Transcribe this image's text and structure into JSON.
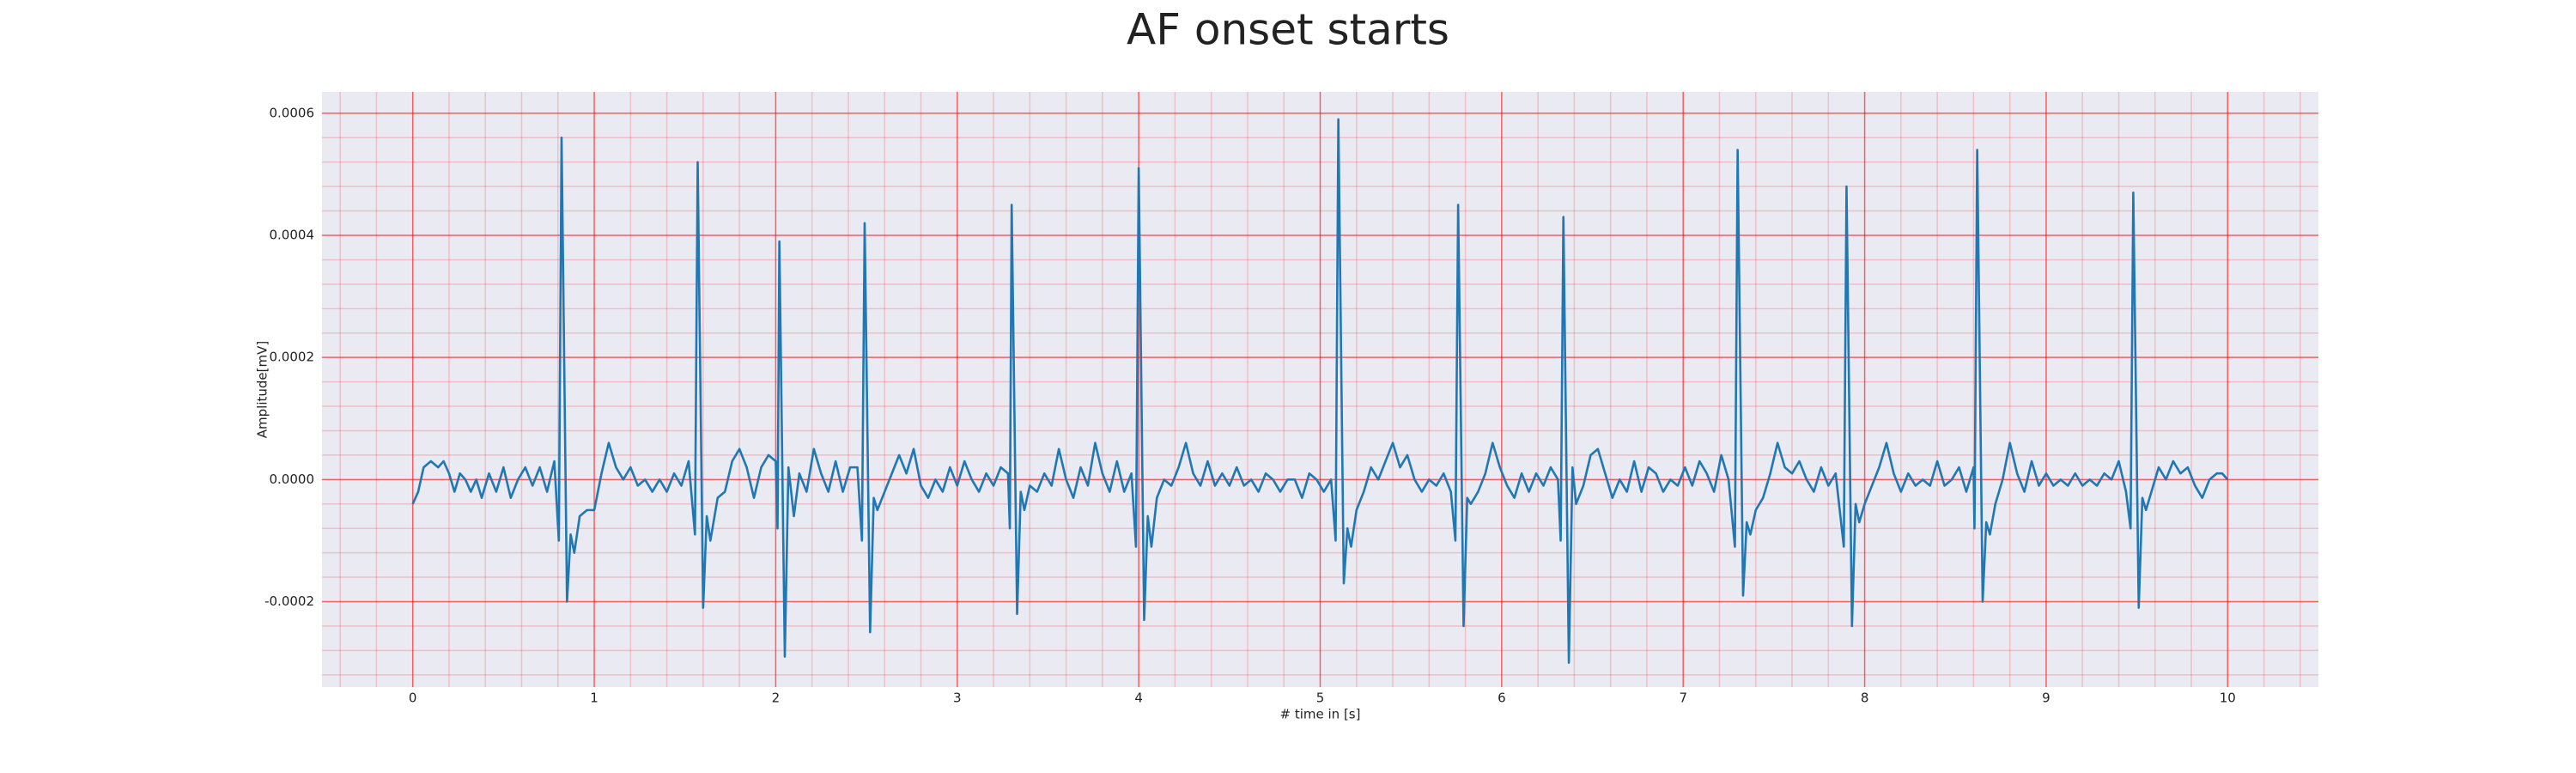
{
  "chart_data": {
    "type": "line",
    "title": "AF onset starts",
    "xlabel": "# time in [s]",
    "ylabel": "Amplitude[mV]",
    "xlim": [
      -0.5,
      10.5
    ],
    "ylim": [
      -0.00034,
      0.000635
    ],
    "xticks": [
      0,
      1,
      2,
      3,
      4,
      5,
      6,
      7,
      8,
      9,
      10
    ],
    "yticks": [
      -0.0002,
      {
        "value": 0,
        "label": "0.0000"
      },
      0.0002,
      0.0004,
      0.0006
    ],
    "grid": true,
    "grid_color": "#ff0000",
    "minor_grid": true,
    "series": [
      {
        "color": "#1f77b4",
        "x": [
          0,
          0.03,
          0.06,
          0.1,
          0.14,
          0.17,
          0.2,
          0.23,
          0.26,
          0.29,
          0.32,
          0.35,
          0.38,
          0.42,
          0.46,
          0.5,
          0.54,
          0.58,
          0.62,
          0.66,
          0.7,
          0.74,
          0.78,
          0.805,
          0.82,
          0.85,
          0.87,
          0.89,
          0.92,
          0.96,
          1.0,
          1.04,
          1.08,
          1.12,
          1.16,
          1.2,
          1.24,
          1.28,
          1.32,
          1.36,
          1.4,
          1.44,
          1.48,
          1.52,
          1.555,
          1.57,
          1.6,
          1.62,
          1.64,
          1.68,
          1.72,
          1.76,
          1.8,
          1.84,
          1.88,
          1.92,
          1.96,
          2.0,
          2.01,
          2.02,
          2.05,
          2.07,
          2.1,
          2.13,
          2.17,
          2.21,
          2.25,
          2.29,
          2.33,
          2.37,
          2.41,
          2.45,
          2.475,
          2.49,
          2.52,
          2.54,
          2.56,
          2.6,
          2.64,
          2.68,
          2.72,
          2.76,
          2.8,
          2.84,
          2.88,
          2.92,
          2.96,
          3.0,
          3.04,
          3.08,
          3.12,
          3.16,
          3.2,
          3.24,
          3.28,
          3.29,
          3.3,
          3.33,
          3.35,
          3.37,
          3.4,
          3.44,
          3.48,
          3.52,
          3.56,
          3.6,
          3.64,
          3.68,
          3.72,
          3.76,
          3.8,
          3.84,
          3.88,
          3.92,
          3.96,
          3.985,
          4.0,
          4.03,
          4.05,
          4.07,
          4.1,
          4.14,
          4.18,
          4.22,
          4.26,
          4.3,
          4.34,
          4.38,
          4.42,
          4.46,
          4.5,
          4.54,
          4.58,
          4.62,
          4.66,
          4.7,
          4.74,
          4.78,
          4.82,
          4.86,
          4.9,
          4.94,
          4.98,
          5.02,
          5.06,
          5.085,
          5.1,
          5.13,
          5.15,
          5.17,
          5.2,
          5.24,
          5.28,
          5.32,
          5.36,
          5.4,
          5.44,
          5.48,
          5.52,
          5.56,
          5.6,
          5.64,
          5.68,
          5.72,
          5.745,
          5.76,
          5.79,
          5.81,
          5.83,
          5.87,
          5.91,
          5.95,
          5.99,
          6.03,
          6.07,
          6.11,
          6.15,
          6.19,
          6.23,
          6.27,
          6.31,
          6.325,
          6.34,
          6.37,
          6.39,
          6.41,
          6.45,
          6.49,
          6.53,
          6.57,
          6.61,
          6.65,
          6.69,
          6.73,
          6.77,
          6.81,
          6.85,
          6.89,
          6.93,
          6.97,
          7.01,
          7.05,
          7.09,
          7.13,
          7.17,
          7.21,
          7.25,
          7.285,
          7.3,
          7.33,
          7.35,
          7.37,
          7.4,
          7.44,
          7.48,
          7.52,
          7.56,
          7.6,
          7.64,
          7.68,
          7.72,
          7.76,
          7.8,
          7.84,
          7.885,
          7.9,
          7.93,
          7.95,
          7.97,
          8.0,
          8.04,
          8.08,
          8.12,
          8.16,
          8.2,
          8.24,
          8.28,
          8.32,
          8.36,
          8.4,
          8.44,
          8.48,
          8.52,
          8.56,
          8.6,
          8.605,
          8.62,
          8.65,
          8.67,
          8.69,
          8.72,
          8.76,
          8.8,
          8.84,
          8.88,
          8.92,
          8.96,
          9.0,
          9.04,
          9.08,
          9.12,
          9.16,
          9.2,
          9.24,
          9.28,
          9.32,
          9.36,
          9.4,
          9.44,
          9.465,
          9.48,
          9.51,
          9.53,
          9.55,
          9.58,
          9.62,
          9.66,
          9.7,
          9.74,
          9.78,
          9.82,
          9.86,
          9.9,
          9.94,
          9.97,
          10.0
        ],
        "values": [
          -4e-05,
          -2e-05,
          2e-05,
          3e-05,
          2e-05,
          3e-05,
          1e-05,
          -2e-05,
          1e-05,
          0,
          -2e-05,
          0,
          -3e-05,
          1e-05,
          -2e-05,
          2e-05,
          -3e-05,
          0,
          2e-05,
          -1e-05,
          2e-05,
          -2e-05,
          3e-05,
          -0.0001,
          0.00056,
          -0.0002,
          -9e-05,
          -0.00012,
          -6e-05,
          -5e-05,
          -5e-05,
          1e-05,
          6e-05,
          2e-05,
          0,
          2e-05,
          -1e-05,
          0,
          -2e-05,
          0,
          -2e-05,
          1e-05,
          -1e-05,
          3e-05,
          -9e-05,
          0.00052,
          -0.00021,
          -6e-05,
          -0.0001,
          -3e-05,
          -2e-05,
          3e-05,
          5e-05,
          2e-05,
          -3e-05,
          2e-05,
          4e-05,
          3e-05,
          -8e-05,
          0.00039,
          -0.00029,
          2e-05,
          -6e-05,
          1e-05,
          -2e-05,
          5e-05,
          1e-05,
          -2e-05,
          3e-05,
          -2e-05,
          2e-05,
          2e-05,
          -0.0001,
          0.00042,
          -0.00025,
          -3e-05,
          -5e-05,
          -2e-05,
          1e-05,
          4e-05,
          1e-05,
          5e-05,
          -1e-05,
          -3e-05,
          0,
          -2e-05,
          2e-05,
          -1e-05,
          3e-05,
          0,
          -2e-05,
          1e-05,
          -1e-05,
          2e-05,
          1e-05,
          -8e-05,
          0.00045,
          -0.00022,
          -2e-05,
          -5e-05,
          -1e-05,
          -2e-05,
          1e-05,
          -1e-05,
          5e-05,
          0,
          -3e-05,
          2e-05,
          -1e-05,
          6e-05,
          1e-05,
          -2e-05,
          3e-05,
          -2e-05,
          1e-05,
          -0.00011,
          0.00051,
          -0.00023,
          -6e-05,
          -0.00011,
          -3e-05,
          0,
          -1e-05,
          2e-05,
          6e-05,
          1e-05,
          -1e-05,
          3e-05,
          -1e-05,
          1e-05,
          -1e-05,
          2e-05,
          -1e-05,
          0,
          -2e-05,
          1e-05,
          0,
          -2e-05,
          0,
          0,
          -3e-05,
          1e-05,
          0,
          -2e-05,
          0,
          -0.0001,
          0.00059,
          -0.00017,
          -8e-05,
          -0.00011,
          -5e-05,
          -2e-05,
          2e-05,
          0,
          3e-05,
          6e-05,
          2e-05,
          4e-05,
          0,
          -2e-05,
          0,
          -1e-05,
          1e-05,
          -2e-05,
          -0.0001,
          0.00045,
          -0.00024,
          -3e-05,
          -4e-05,
          -2e-05,
          1e-05,
          6e-05,
          2e-05,
          -1e-05,
          -3e-05,
          1e-05,
          -2e-05,
          1e-05,
          -1e-05,
          2e-05,
          0,
          -0.0001,
          0.00043,
          -0.0003,
          2e-05,
          -4e-05,
          -1e-05,
          4e-05,
          5e-05,
          1e-05,
          -3e-05,
          0,
          -2e-05,
          3e-05,
          -2e-05,
          2e-05,
          1e-05,
          -2e-05,
          0,
          -1e-05,
          2e-05,
          -1e-05,
          3e-05,
          1e-05,
          -2e-05,
          4e-05,
          0,
          -0.00011,
          0.00054,
          -0.00019,
          -7e-05,
          -9e-05,
          -5e-05,
          -3e-05,
          1e-05,
          6e-05,
          2e-05,
          1e-05,
          3e-05,
          0,
          -2e-05,
          2e-05,
          -1e-05,
          1e-05,
          -0.00011,
          0.00048,
          -0.00024,
          -4e-05,
          -7e-05,
          -4e-05,
          -1e-05,
          2e-05,
          6e-05,
          1e-05,
          -2e-05,
          1e-05,
          -1e-05,
          0,
          -1e-05,
          3e-05,
          -1e-05,
          0,
          2e-05,
          -2e-05,
          2e-05,
          -8e-05,
          0.00054,
          -0.0002,
          -7e-05,
          -9e-05,
          -4e-05,
          0,
          6e-05,
          1e-05,
          -2e-05,
          3e-05,
          -1e-05,
          1e-05,
          -1e-05,
          0,
          -1e-05,
          1e-05,
          -1e-05,
          0,
          -1e-05,
          1e-05,
          0,
          3e-05,
          -2e-05,
          -8e-05,
          0.00047,
          -0.00021,
          -3e-05,
          -5e-05,
          -2e-05,
          2e-05,
          0,
          3e-05,
          1e-05,
          2e-05,
          -1e-05,
          -3e-05,
          0,
          1e-05,
          1e-05,
          0
        ]
      }
    ]
  }
}
